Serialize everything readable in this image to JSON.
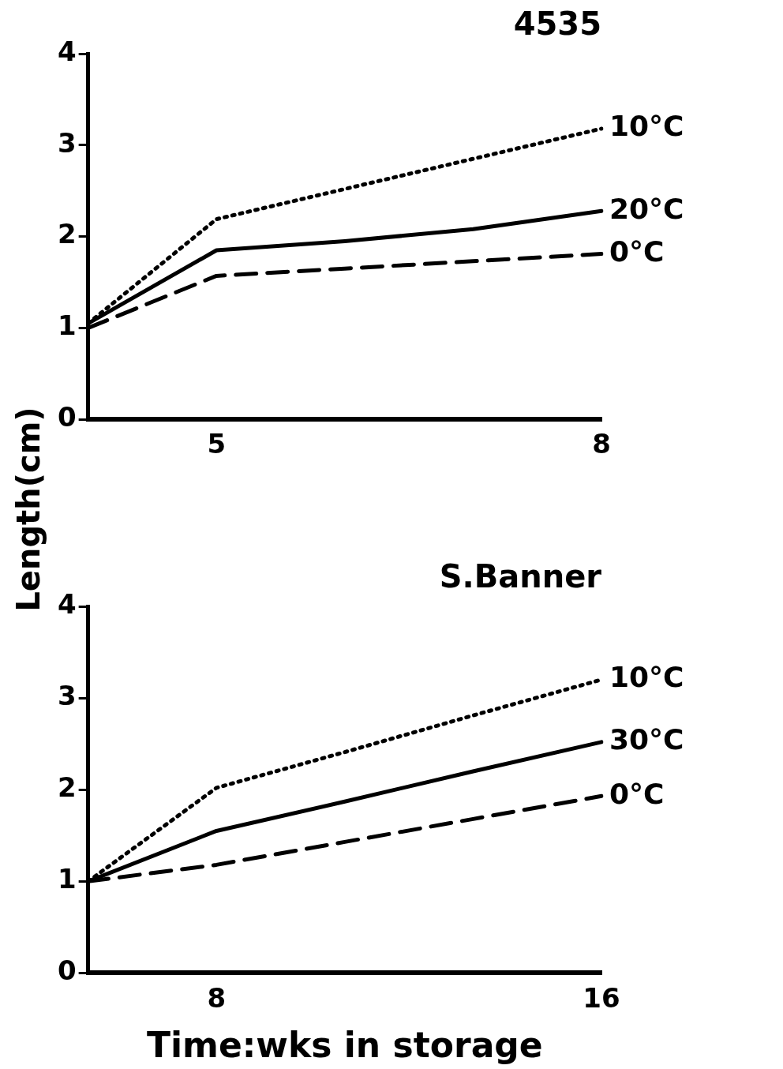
{
  "chart_data": [
    {
      "type": "line",
      "title": "4535",
      "ylabel": "Length(cm)",
      "categories": [
        null,
        "5",
        null,
        null,
        "8"
      ],
      "ylim": [
        0,
        4
      ],
      "yticks": [
        0,
        1,
        2,
        3,
        4
      ],
      "grid": false,
      "legend": false,
      "marker": "none",
      "series": [
        {
          "name": "10°C",
          "color": "#000000",
          "line_style": "dotted",
          "values": [
            1.05,
            2.19,
            2.52,
            2.85,
            3.18
          ]
        },
        {
          "name": "20°C",
          "color": "#000000",
          "line_style": "solid",
          "values": [
            1.05,
            1.85,
            1.95,
            2.08,
            2.28
          ]
        },
        {
          "name": "0°C",
          "color": "#000000",
          "line_style": "dashed",
          "values": [
            1.0,
            1.57,
            1.65,
            1.73,
            1.81
          ]
        }
      ]
    },
    {
      "type": "line",
      "title": "S.Banner",
      "xlabel": "Time:wks in storage",
      "categories": [
        null,
        "8",
        null,
        null,
        "16"
      ],
      "ylim": [
        0,
        4
      ],
      "yticks": [
        0,
        1,
        2,
        3,
        4
      ],
      "grid": false,
      "legend": false,
      "marker": "none",
      "series": [
        {
          "name": "10°C",
          "color": "#000000",
          "line_style": "dotted",
          "values": [
            1.0,
            2.02,
            2.41,
            2.81,
            3.2
          ]
        },
        {
          "name": "30°C",
          "color": "#000000",
          "line_style": "solid",
          "values": [
            1.0,
            1.55,
            1.87,
            2.2,
            2.52
          ]
        },
        {
          "name": "0°C",
          "color": "#000000",
          "line_style": "dashed",
          "values": [
            1.0,
            1.18,
            1.43,
            1.68,
            1.93
          ]
        }
      ]
    }
  ]
}
